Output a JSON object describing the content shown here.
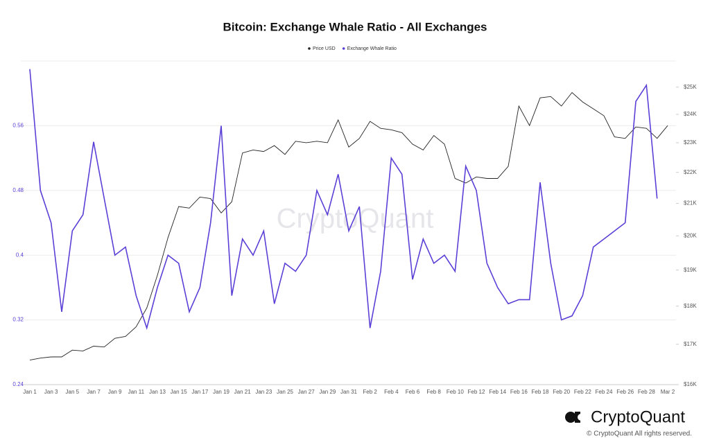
{
  "chart_data": {
    "type": "line",
    "title": "Bitcoin: Exchange Whale Ratio - All Exchanges",
    "watermark": "CryptoQuant",
    "brand": "CryptoQuant",
    "copyright": "© CryptoQuant All rights reserved.",
    "categories": [
      "Jan 1",
      null,
      "Jan 3",
      null,
      "Jan 5",
      null,
      "Jan 7",
      null,
      "Jan 9",
      null,
      "Jan 11",
      null,
      "Jan 13",
      null,
      "Jan 15",
      null,
      "Jan 17",
      null,
      "Jan 19",
      null,
      "Jan 21",
      null,
      "Jan 23",
      null,
      "Jan 25",
      null,
      "Jan 27",
      null,
      "Jan 29",
      null,
      "Jan 31",
      null,
      "Feb 2",
      null,
      "Feb 4",
      null,
      "Feb 6",
      null,
      "Feb 8",
      null,
      "Feb 10",
      null,
      "Feb 12",
      null,
      "Feb 14",
      null,
      "Feb 16",
      null,
      "Feb 18",
      null,
      "Feb 20",
      null,
      "Feb 22",
      null,
      "Feb 24",
      null,
      "Feb 26",
      null,
      "Feb 28",
      null,
      "Mar 2"
    ],
    "series": [
      {
        "name": "Price USD",
        "color": "#222222",
        "axis": "y2",
        "values": [
          16600,
          16650,
          16680,
          16680,
          16850,
          16830,
          16950,
          16930,
          17150,
          17200,
          17450,
          17950,
          18850,
          19950,
          20900,
          20850,
          21200,
          21150,
          20700,
          21050,
          22650,
          22750,
          22700,
          22900,
          22600,
          23050,
          23000,
          23050,
          23000,
          23800,
          22850,
          23150,
          23750,
          23500,
          23450,
          23350,
          22950,
          22750,
          23250,
          22950,
          21800,
          21650,
          21850,
          21800,
          21800,
          22200,
          24300,
          23600,
          24600,
          24650,
          24300,
          24800,
          24450,
          24200,
          23950,
          23200,
          23150,
          23550,
          23500,
          23150,
          23600
        ]
      },
      {
        "name": "Exchange Whale Ratio",
        "color": "#5b3fd6",
        "values": [
          0.63,
          0.48,
          0.44,
          0.33,
          0.43,
          0.45,
          0.54,
          0.47,
          0.4,
          0.41,
          0.35,
          0.31,
          0.36,
          0.4,
          0.39,
          0.33,
          0.36,
          0.44,
          0.56,
          0.35,
          0.42,
          0.4,
          0.43,
          0.34,
          0.39,
          0.38,
          0.4,
          0.48,
          0.45,
          0.5,
          0.43,
          0.46,
          0.31,
          0.38,
          0.52,
          0.5,
          0.37,
          0.42,
          0.39,
          0.4,
          0.38,
          0.51,
          0.48,
          0.39,
          0.36,
          0.34,
          0.345,
          0.345,
          0.49,
          0.39,
          0.32,
          0.325,
          0.35,
          0.41,
          0.42,
          0.43,
          0.44,
          0.59,
          0.61,
          0.47,
          null
        ]
      }
    ],
    "ylim": [
      0.24,
      0.64
    ],
    "yticks": [
      0.24,
      0.32,
      0.4,
      0.48,
      0.56
    ],
    "y2lim": [
      16000,
      26000
    ],
    "y2log": true,
    "y2ticks": [
      {
        "value": 16000,
        "label": "$16K"
      },
      {
        "value": 17000,
        "label": "$17K"
      },
      {
        "value": 18000,
        "label": "$18K"
      },
      {
        "value": 19000,
        "label": "$19K"
      },
      {
        "value": 20000,
        "label": "$20K"
      },
      {
        "value": 21000,
        "label": "$21K"
      },
      {
        "value": 22000,
        "label": "$22K"
      },
      {
        "value": 23000,
        "label": "$23K"
      },
      {
        "value": 24000,
        "label": "$24K"
      },
      {
        "value": 25000,
        "label": "$25K"
      }
    ],
    "grid": true,
    "legend": "top"
  }
}
